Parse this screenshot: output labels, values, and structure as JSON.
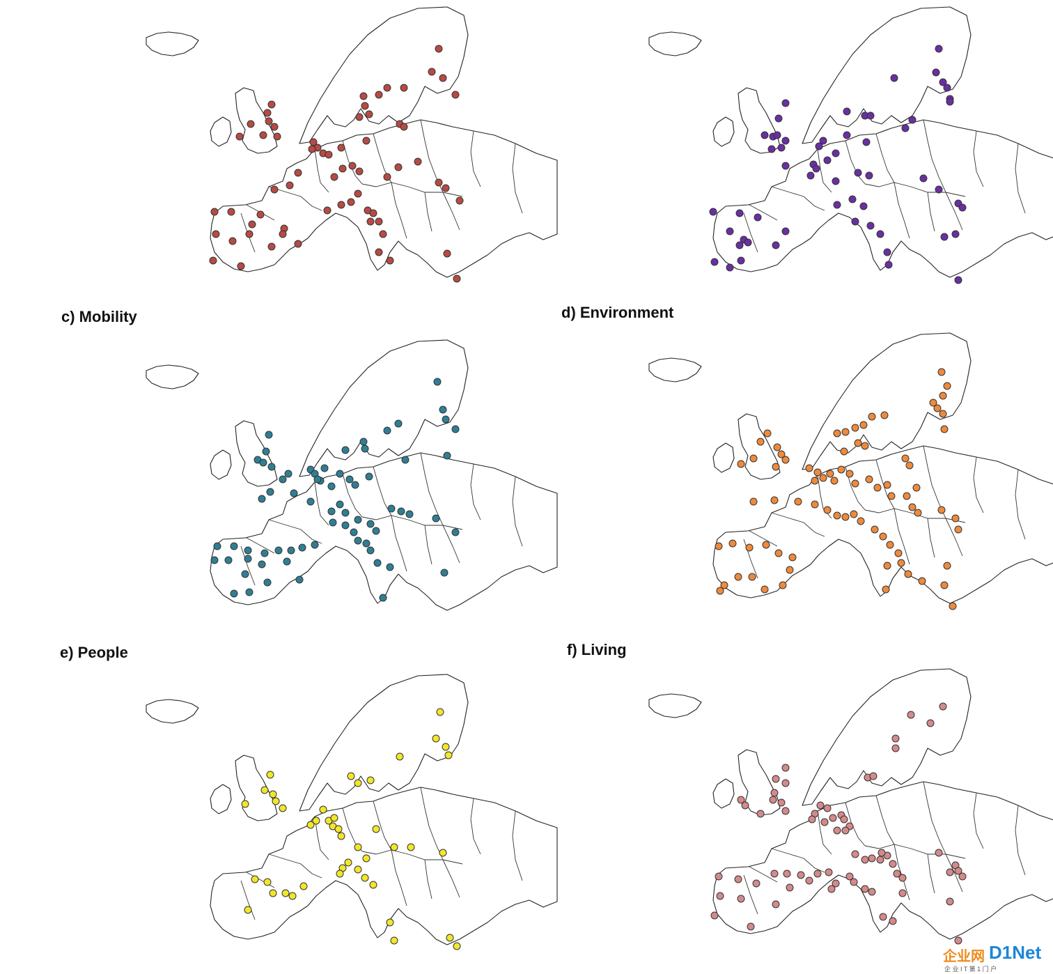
{
  "panels": [
    {
      "id": "a",
      "label": "",
      "color": "#b84a44",
      "cities": []
    },
    {
      "id": "b",
      "label": "",
      "color": "#6a2fa3",
      "cities": []
    },
    {
      "id": "c",
      "label": "c) Mobility",
      "color": "#2f7f94",
      "cities": []
    },
    {
      "id": "d",
      "label": "d) Environment",
      "color": "#ee8a3c",
      "cities": []
    },
    {
      "id": "e",
      "label": "e) People",
      "color": "#f2e62a",
      "cities": []
    },
    {
      "id": "f",
      "label": "f) Living",
      "color": "#d48a8a",
      "cities": []
    }
  ],
  "watermark": {
    "logo_text": "企业网",
    "brand_text": "D1Net",
    "tagline": "企 业 I T 第 1 门 户"
  }
}
